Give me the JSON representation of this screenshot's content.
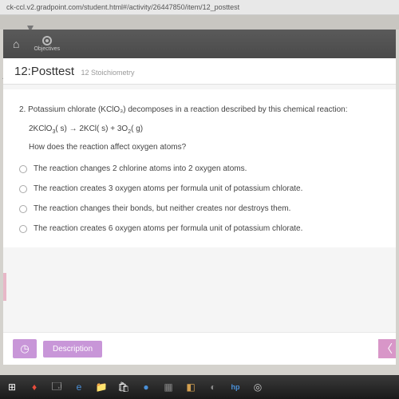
{
  "url": "ck-ccl.v2.gradpoint.com/student.html#/activity/26447850/item/12_posttest",
  "header": {
    "objectives_label": "Objectives"
  },
  "title": {
    "main": "12:Posttest",
    "sub": "12 Stoichiometry"
  },
  "question": {
    "number": "2.",
    "text": "Potassium chlorate (KClO₃) decomposes in a reaction described by this chemical reaction:",
    "equation": "2KClO₃( s) → 2KCl( s) + 3O₂( g)",
    "followup": "How does the reaction affect oxygen atoms?"
  },
  "options": [
    "The reaction changes 2 chlorine atoms into 2 oxygen atoms.",
    "The reaction creates 3 oxygen atoms per formula unit of potassium chlorate.",
    "The reaction changes their bonds, but neither creates nor destroys them.",
    "The reaction creates 6 oxygen atoms per formula unit of potassium chlorate."
  ],
  "bottom": {
    "description_label": "Description"
  },
  "colors": {
    "header_bg": "#4a4a4a",
    "accent": "#c896d8",
    "body_bg": "#d4d2cd"
  }
}
